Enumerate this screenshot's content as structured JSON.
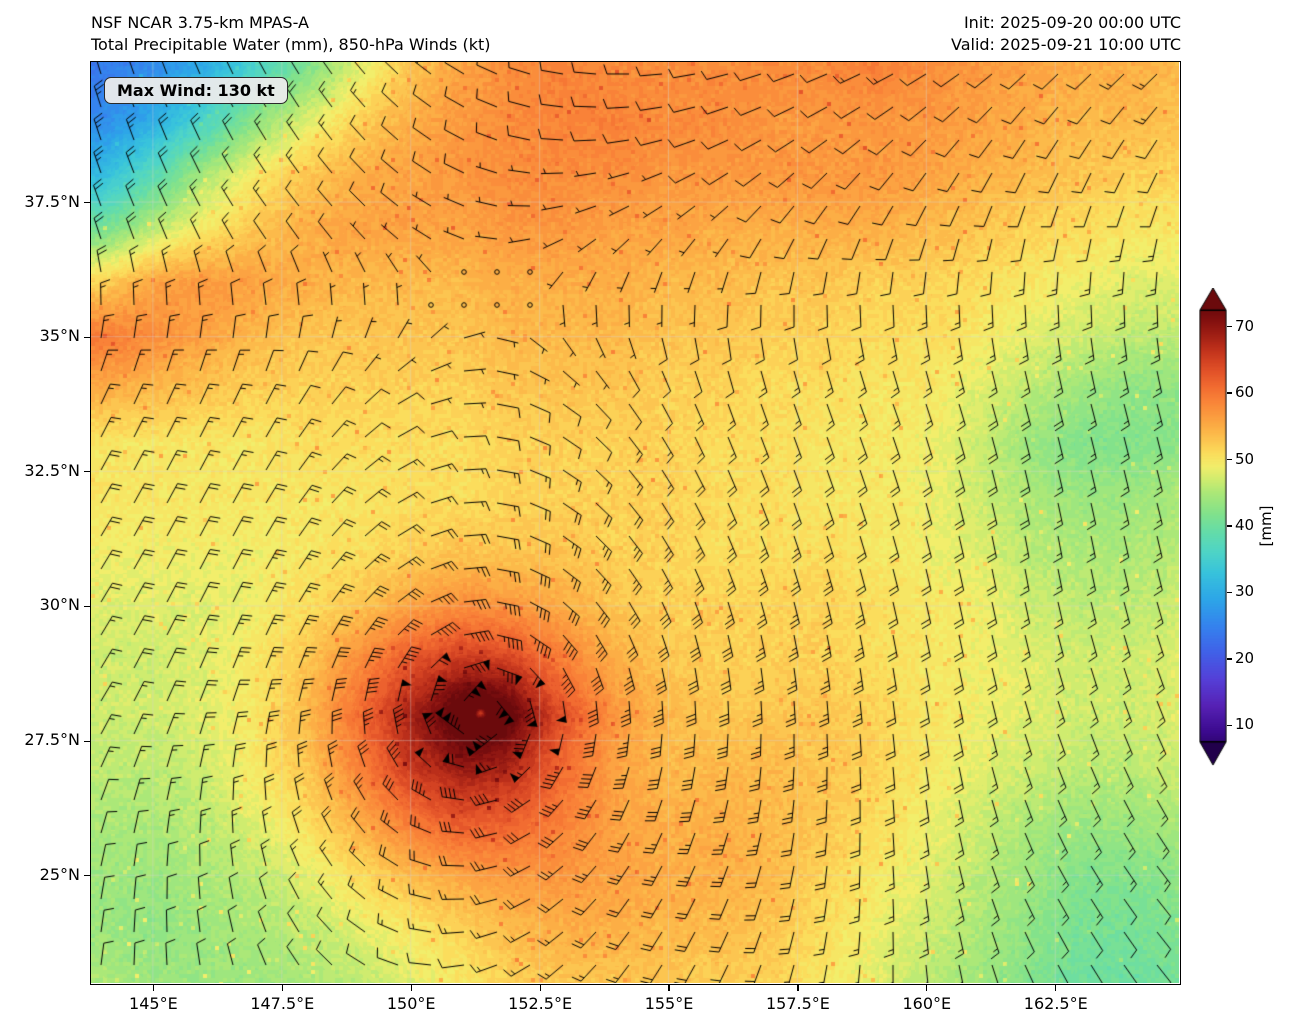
{
  "header": {
    "title_line1": "NSF NCAR 3.75-km MPAS-A",
    "title_line2": "Total Precipitable Water (mm), 850-hPa Winds (kt)",
    "init_line": "Init: 2025-09-20 00:00 UTC",
    "valid_line": "Valid: 2025-09-21 10:00 UTC"
  },
  "annotation": {
    "max_wind_label": "Max Wind: 130 kt"
  },
  "chart_data": {
    "type": "heatmap",
    "title": "Total Precipitable Water (mm), 850-hPa Winds (kt)",
    "model": "NSF NCAR 3.75-km MPAS-A",
    "lon_range": [
      143.8,
      164.9
    ],
    "lat_range": [
      23.0,
      40.1
    ],
    "x_ticks": [
      {
        "value": 145.0,
        "label": "145°E"
      },
      {
        "value": 147.5,
        "label": "147.5°E"
      },
      {
        "value": 150.0,
        "label": "150°E"
      },
      {
        "value": 152.5,
        "label": "152.5°E"
      },
      {
        "value": 155.0,
        "label": "155°E"
      },
      {
        "value": 157.5,
        "label": "157.5°E"
      },
      {
        "value": 160.0,
        "label": "160°E"
      },
      {
        "value": 162.5,
        "label": "162.5°E"
      }
    ],
    "y_ticks": [
      {
        "value": 37.5,
        "label": "37.5°N"
      },
      {
        "value": 35.0,
        "label": "35°N"
      },
      {
        "value": 32.5,
        "label": "32.5°N"
      },
      {
        "value": 30.0,
        "label": "30°N"
      },
      {
        "value": 27.5,
        "label": "27.5°N"
      },
      {
        "value": 25.0,
        "label": "25°N"
      }
    ],
    "colorbar": {
      "label": "[mm]",
      "units": "mm",
      "vmin": 7.5,
      "vmax": 72.5,
      "ticks": [
        10,
        20,
        30,
        40,
        50,
        60,
        70
      ],
      "stops": [
        [
          5,
          "#21004b"
        ],
        [
          9,
          "#3b0a8e"
        ],
        [
          13,
          "#5722b5"
        ],
        [
          17,
          "#5540d8"
        ],
        [
          21,
          "#4161e8"
        ],
        [
          25,
          "#3583ee"
        ],
        [
          29,
          "#2da6e8"
        ],
        [
          33,
          "#38c3dc"
        ],
        [
          36,
          "#4ed4c8"
        ],
        [
          39,
          "#63dcab"
        ],
        [
          42,
          "#83e28b"
        ],
        [
          45,
          "#abe878"
        ],
        [
          47,
          "#cfec6f"
        ],
        [
          49,
          "#f2ee6b"
        ],
        [
          51,
          "#fbdd5c"
        ],
        [
          53,
          "#fcc550"
        ],
        [
          55,
          "#fcae45"
        ],
        [
          57,
          "#fb983e"
        ],
        [
          59,
          "#f98238"
        ],
        [
          61,
          "#f26c31"
        ],
        [
          63,
          "#e5562a"
        ],
        [
          65,
          "#d34222"
        ],
        [
          67,
          "#ba2e1a"
        ],
        [
          69,
          "#9d1e14"
        ],
        [
          71,
          "#82100f"
        ],
        [
          73,
          "#6b0a0c"
        ]
      ]
    },
    "tpw_grid": {
      "units": "mm",
      "lon_start": 144,
      "lon_step": 1,
      "nx": 22,
      "lat_start": 40,
      "lat_step": -1,
      "ny": 18,
      "values": [
        [
          24,
          26,
          30,
          36,
          42,
          48,
          53,
          56,
          58,
          59,
          58,
          58,
          58,
          58,
          58,
          59,
          58,
          57,
          56,
          55,
          55,
          54
        ],
        [
          26,
          30,
          36,
          43,
          48,
          52,
          55,
          57,
          58,
          59,
          59,
          58,
          58,
          57,
          57,
          57,
          57,
          56,
          55,
          54,
          54,
          53
        ],
        [
          32,
          38,
          45,
          50,
          53,
          55,
          56,
          57,
          58,
          58,
          58,
          57,
          57,
          57,
          57,
          57,
          56,
          55,
          54,
          53,
          52,
          52
        ],
        [
          41,
          46,
          50,
          53,
          55,
          56,
          56,
          56,
          57,
          57,
          56,
          56,
          55,
          55,
          55,
          55,
          54,
          53,
          52,
          51,
          50,
          50
        ],
        [
          52,
          56,
          57,
          56,
          55,
          54,
          54,
          54,
          55,
          55,
          55,
          54,
          54,
          53,
          53,
          52,
          52,
          51,
          50,
          49,
          48,
          48
        ],
        [
          60,
          58,
          56,
          54,
          53,
          53,
          53,
          53,
          54,
          54,
          54,
          53,
          53,
          52,
          52,
          51,
          51,
          50,
          48,
          47,
          46,
          46
        ],
        [
          55,
          54,
          53,
          52,
          52,
          52,
          52,
          52,
          53,
          53,
          53,
          52,
          52,
          51,
          51,
          50,
          50,
          48,
          46,
          44,
          43,
          43
        ],
        [
          50,
          50,
          50,
          50,
          51,
          51,
          51,
          51,
          52,
          52,
          52,
          52,
          51,
          51,
          50,
          50,
          49,
          47,
          44,
          42,
          42,
          43
        ],
        [
          50,
          50,
          50,
          50,
          50,
          50,
          51,
          51,
          52,
          52,
          52,
          52,
          51,
          51,
          50,
          50,
          49,
          47,
          45,
          44,
          44,
          45
        ],
        [
          49,
          49,
          49,
          49,
          50,
          51,
          52,
          53,
          53,
          53,
          52,
          52,
          51,
          51,
          51,
          50,
          49,
          48,
          46,
          45,
          45,
          46
        ],
        [
          48,
          48,
          48,
          49,
          51,
          53,
          56,
          58,
          57,
          55,
          53,
          52,
          52,
          52,
          52,
          51,
          50,
          49,
          47,
          46,
          46,
          47
        ],
        [
          47,
          47,
          48,
          50,
          53,
          58,
          63,
          65,
          64,
          59,
          55,
          53,
          52,
          52,
          52,
          51,
          50,
          49,
          48,
          47,
          47,
          48
        ],
        [
          47,
          47,
          48,
          50,
          54,
          61,
          68,
          71,
          70,
          63,
          57,
          54,
          53,
          53,
          53,
          52,
          50,
          49,
          48,
          47,
          47,
          48
        ],
        [
          46,
          46,
          47,
          50,
          53,
          59,
          66,
          69,
          67,
          61,
          56,
          54,
          54,
          54,
          53,
          52,
          50,
          48,
          47,
          46,
          46,
          47
        ],
        [
          45,
          45,
          46,
          48,
          51,
          55,
          60,
          63,
          62,
          59,
          56,
          55,
          55,
          54,
          53,
          51,
          49,
          47,
          45,
          44,
          44,
          45
        ],
        [
          44,
          44,
          45,
          46,
          48,
          51,
          54,
          56,
          57,
          57,
          56,
          55,
          55,
          54,
          52,
          50,
          48,
          46,
          44,
          42,
          42,
          43
        ],
        [
          44,
          43,
          44,
          45,
          46,
          48,
          50,
          52,
          54,
          55,
          55,
          54,
          54,
          53,
          51,
          49,
          47,
          45,
          43,
          41,
          41,
          42
        ],
        [
          45,
          44,
          44,
          44,
          45,
          46,
          48,
          50,
          52,
          53,
          53,
          53,
          52,
          52,
          50,
          48,
          46,
          44,
          42,
          40,
          40,
          41
        ]
      ]
    },
    "cyclone": {
      "center_lon": 151.35,
      "center_lat": 28.0,
      "max_wind_kt": 130,
      "radius_max_wind_deg": 0.45,
      "tpw_core_bonus_mm": 6,
      "tpw_core_sigma_deg": 0.55
    },
    "wind_grid": {
      "units": "kt",
      "level_hPa": 850,
      "lon_start": 144,
      "lon_step": 3,
      "nx": 8,
      "lat_start": 40,
      "lat_step": -3,
      "ny": 7,
      "u": [
        [
          15,
          18,
          18,
          20,
          18,
          18,
          14,
          14
        ],
        [
          14,
          16,
          15,
          14,
          13,
          11,
          8,
          7
        ],
        [
          0,
          5,
          8,
          8,
          6,
          1,
          0,
          -1
        ],
        [
          -4,
          0,
          2,
          1,
          0,
          -1,
          0,
          -2
        ],
        [
          -8,
          -6,
          -3,
          0,
          0,
          -2,
          -5,
          -6
        ],
        [
          -7,
          -8,
          -6,
          -4,
          -1,
          -5,
          -9,
          -10
        ],
        [
          -8,
          -8,
          -7,
          -6,
          -3,
          -6,
          -9,
          -10
        ]
      ],
      "v": [
        [
          -25,
          -18,
          -8,
          -3,
          0,
          2,
          4,
          5
        ],
        [
          -14,
          -6,
          -2,
          0,
          1,
          4,
          6,
          7
        ],
        [
          -8,
          -5,
          0,
          1,
          5,
          8,
          10,
          10
        ],
        [
          -4,
          -6,
          -2,
          5,
          10,
          10,
          8,
          8
        ],
        [
          0,
          -1,
          0,
          4,
          10,
          9,
          6,
          6
        ],
        [
          2,
          1,
          1,
          4,
          8,
          6,
          3,
          2
        ],
        [
          1,
          0,
          2,
          5,
          7,
          6,
          2,
          1
        ]
      ]
    },
    "barbs": {
      "spacing_px": 33,
      "pennant_kt": 50,
      "full_kt": 10,
      "half_kt": 5
    }
  }
}
